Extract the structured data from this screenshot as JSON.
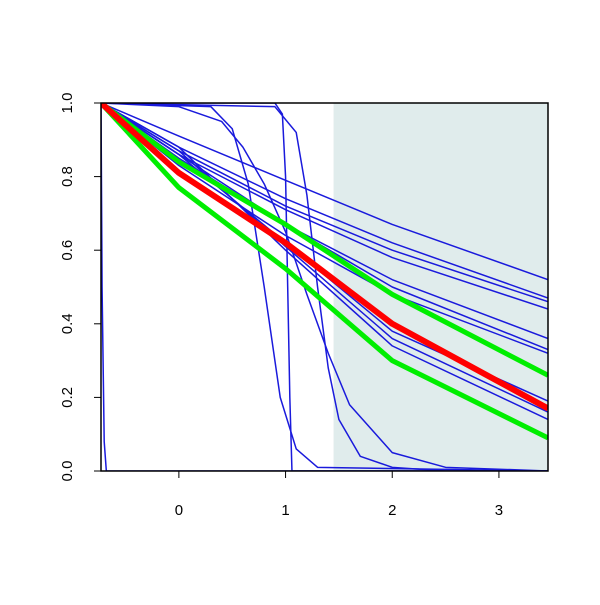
{
  "chart_data": {
    "type": "line",
    "xlim": [
      -0.73,
      3.46
    ],
    "ylim": [
      0,
      1
    ],
    "xticks": [
      0,
      1,
      2,
      3
    ],
    "yticks": [
      {
        "value": 0,
        "label": "0.0"
      },
      0.2,
      0.4,
      0.6,
      0.8,
      {
        "value": 1,
        "label": "1.0"
      }
    ],
    "highlight_x": [
      1.45,
      3.46
    ],
    "highlight_color": "#e0ecec",
    "series": [
      {
        "color": "#1a1adc",
        "width": 1.5,
        "x": [
          -0.73,
          -0.72,
          -0.7,
          -0.68,
          3.46
        ],
        "values": [
          1,
          0.5,
          0.08,
          0,
          0
        ]
      },
      {
        "color": "#1a1adc",
        "width": 1.5,
        "x": [
          -0.73,
          0.9,
          0.97,
          1.0,
          1.02,
          1.04,
          1.06,
          3.46
        ],
        "values": [
          1,
          1,
          0.97,
          0.8,
          0.5,
          0.2,
          0,
          0
        ]
      },
      {
        "color": "#1a1adc",
        "width": 1.5,
        "x": [
          -0.73,
          0.3,
          0.5,
          0.65,
          0.8,
          0.95,
          1.1,
          1.3,
          3.46
        ],
        "values": [
          1,
          0.99,
          0.93,
          0.78,
          0.5,
          0.2,
          0.06,
          0.01,
          0
        ]
      },
      {
        "color": "#1a1adc",
        "width": 1.5,
        "x": [
          -0.73,
          0.9,
          1.1,
          1.2,
          1.3,
          1.4,
          1.5,
          1.7,
          2.0,
          2.5,
          3.46
        ],
        "values": [
          1,
          0.99,
          0.92,
          0.75,
          0.5,
          0.28,
          0.14,
          0.04,
          0.01,
          0,
          0
        ]
      },
      {
        "color": "#1a1adc",
        "width": 1.5,
        "x": [
          -0.73,
          0,
          0.4,
          0.6,
          0.8,
          1.0,
          1.2,
          1.4,
          1.6,
          2.0,
          2.5,
          3.46
        ],
        "values": [
          1,
          0.99,
          0.95,
          0.88,
          0.78,
          0.65,
          0.48,
          0.32,
          0.18,
          0.05,
          0.01,
          0
        ]
      },
      {
        "color": "#1a1adc",
        "width": 1.5,
        "x": [
          -0.73,
          0,
          1,
          2,
          3.46
        ],
        "values": [
          1,
          0.91,
          0.79,
          0.67,
          0.52
        ]
      },
      {
        "color": "#1a1adc",
        "width": 1.5,
        "x": [
          -0.73,
          0,
          1,
          2,
          3.46
        ],
        "values": [
          1,
          0.88,
          0.74,
          0.62,
          0.47
        ]
      },
      {
        "color": "#1a1adc",
        "width": 1.5,
        "x": [
          -0.73,
          0,
          1,
          2,
          3.46
        ],
        "values": [
          1,
          0.87,
          0.72,
          0.6,
          0.46
        ]
      },
      {
        "color": "#1a1adc",
        "width": 1.5,
        "x": [
          -0.73,
          0,
          1,
          2,
          3.46
        ],
        "values": [
          1,
          0.86,
          0.71,
          0.58,
          0.44
        ]
      },
      {
        "color": "#1a1adc",
        "width": 1.5,
        "x": [
          -0.73,
          0,
          1,
          2,
          3.46
        ],
        "values": [
          1,
          0.85,
          0.67,
          0.52,
          0.36
        ]
      },
      {
        "color": "#1a1adc",
        "width": 1.5,
        "x": [
          -0.73,
          0,
          1,
          2,
          3.46
        ],
        "values": [
          1,
          0.86,
          0.67,
          0.5,
          0.33
        ]
      },
      {
        "color": "#1a1adc",
        "width": 1.5,
        "x": [
          -0.73,
          0,
          1,
          2,
          3.46
        ],
        "values": [
          1,
          0.83,
          0.64,
          0.48,
          0.32
        ]
      },
      {
        "color": "#1a1adc",
        "width": 1.5,
        "x": [
          -0.73,
          0,
          1,
          2,
          3.46
        ],
        "values": [
          1,
          0.86,
          0.62,
          0.38,
          0.19
        ]
      },
      {
        "color": "#1a1adc",
        "width": 1.5,
        "x": [
          -0.73,
          0,
          1,
          2,
          3.46
        ],
        "values": [
          1,
          0.87,
          0.61,
          0.36,
          0.16
        ]
      },
      {
        "color": "#1a1adc",
        "width": 1.5,
        "x": [
          -0.73,
          0,
          1,
          2,
          3.46
        ],
        "values": [
          1,
          0.88,
          0.6,
          0.34,
          0.14
        ]
      },
      {
        "color": "#00ee00",
        "width": 5,
        "x": [
          -0.73,
          0,
          1,
          2,
          3.46
        ],
        "values": [
          1,
          0.84,
          0.67,
          0.48,
          0.26
        ]
      },
      {
        "color": "#00ee00",
        "width": 5,
        "x": [
          -0.73,
          0,
          1,
          2,
          3.46
        ],
        "values": [
          1,
          0.77,
          0.55,
          0.3,
          0.09
        ]
      },
      {
        "color": "#ff0000",
        "width": 6,
        "x": [
          -0.73,
          0,
          1,
          2,
          3.46
        ],
        "values": [
          1,
          0.81,
          0.62,
          0.4,
          0.17
        ]
      }
    ]
  }
}
